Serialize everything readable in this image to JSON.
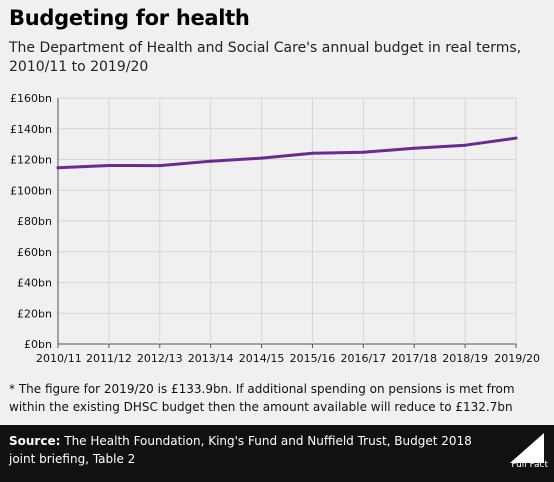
{
  "title": "Budgeting for health",
  "subtitle": "The Department of Health and Social Care's annual budget in real terms, 2010/11 to 2019/20",
  "footnote": "* The figure for 2019/20 is £133.9bn. If additional spending on pensions is met from within the existing DHSC budget then the amount available will reduce to £132.7bn",
  "source": {
    "label": "Source:",
    "text": "The Health Foundation, King's Fund and Nuffield Trust, Budget 2018 joint briefing, Table 2"
  },
  "logo_text": "Full Fact",
  "colors": {
    "line": "#6a2c91",
    "grid": "#d6d6d6",
    "axis": "#555555",
    "background": "#f0f0f0",
    "footer": "#111111"
  },
  "chart_data": {
    "type": "line",
    "title": "Budgeting for health",
    "xlabel": "",
    "ylabel": "",
    "categories": [
      "2010/11",
      "2011/12",
      "2012/13",
      "2013/14",
      "2014/15",
      "2015/16",
      "2016/17",
      "2017/18",
      "2018/19",
      "2019/20"
    ],
    "series": [
      {
        "values": [
          114.6,
          116.1,
          116.0,
          118.9,
          120.9,
          124.1,
          124.7,
          127.3,
          129.3,
          133.9
        ]
      }
    ],
    "y_ticks": [
      "£0bn",
      "£20bn",
      "£40bn",
      "£60bn",
      "£80bn",
      "£100bn",
      "£120bn",
      "£140bn",
      "£160bn"
    ],
    "ylim": [
      0,
      160
    ],
    "grid": true
  }
}
